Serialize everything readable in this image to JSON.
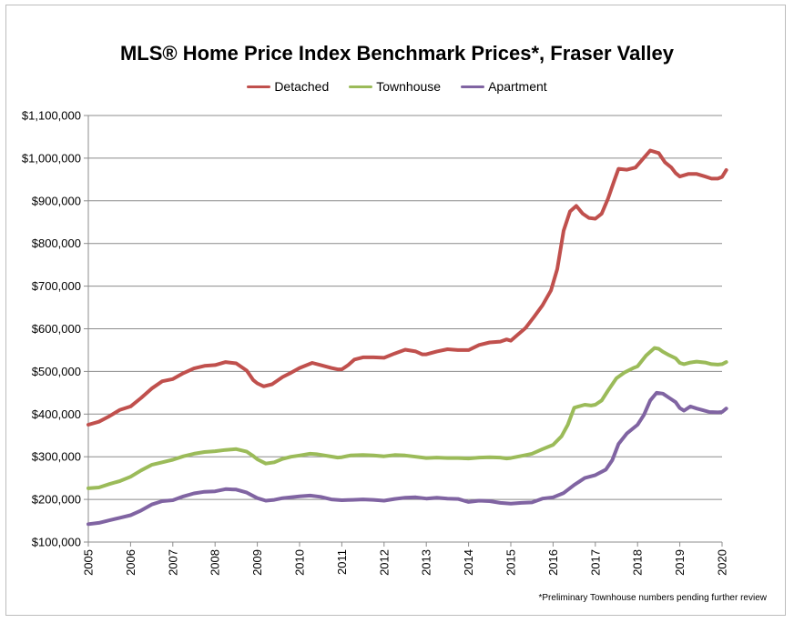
{
  "chart_data": {
    "type": "line",
    "title": "MLS® Home Price Index Benchmark Prices*, Fraser Valley",
    "footnote": "*Preliminary Townhouse numbers pending further review",
    "xlabel": "",
    "ylabel": "",
    "x_range": [
      2005,
      2020
    ],
    "ylim": [
      100000,
      1100000
    ],
    "grid": true,
    "legend_placement": "top-center",
    "y_ticks": [
      100000,
      200000,
      300000,
      400000,
      500000,
      600000,
      700000,
      800000,
      900000,
      1000000,
      1100000
    ],
    "y_tick_labels": [
      "$100,000",
      "$200,000",
      "$300,000",
      "$400,000",
      "$500,000",
      "$600,000",
      "$700,000",
      "$800,000",
      "$900,000",
      "$1,000,000",
      "$1,100,000"
    ],
    "x_ticks": [
      2005,
      2006,
      2007,
      2008,
      2009,
      2010,
      2011,
      2012,
      2013,
      2014,
      2015,
      2016,
      2017,
      2018,
      2019,
      2020
    ],
    "x_tick_labels": [
      "2005",
      "2006",
      "2007",
      "2008",
      "2009",
      "2010",
      "2011",
      "2012",
      "2013",
      "2014",
      "2015",
      "2016",
      "2017",
      "2018",
      "2019",
      "2020"
    ],
    "series": [
      {
        "name": "Detached",
        "color": "#c0504d",
        "points": [
          [
            2005.0,
            375000
          ],
          [
            2005.25,
            382000
          ],
          [
            2005.5,
            395000
          ],
          [
            2005.75,
            410000
          ],
          [
            2006.0,
            418000
          ],
          [
            2006.25,
            438000
          ],
          [
            2006.5,
            460000
          ],
          [
            2006.75,
            477000
          ],
          [
            2007.0,
            482000
          ],
          [
            2007.25,
            496000
          ],
          [
            2007.5,
            507000
          ],
          [
            2007.75,
            513000
          ],
          [
            2008.0,
            515000
          ],
          [
            2008.25,
            522000
          ],
          [
            2008.5,
            519000
          ],
          [
            2008.75,
            502000
          ],
          [
            2008.9,
            480000
          ],
          [
            2009.0,
            472000
          ],
          [
            2009.15,
            465000
          ],
          [
            2009.35,
            470000
          ],
          [
            2009.6,
            487000
          ],
          [
            2009.8,
            497000
          ],
          [
            2010.0,
            508000
          ],
          [
            2010.3,
            520000
          ],
          [
            2010.5,
            515000
          ],
          [
            2010.75,
            508000
          ],
          [
            2010.9,
            505000
          ],
          [
            2011.0,
            505000
          ],
          [
            2011.15,
            515000
          ],
          [
            2011.3,
            528000
          ],
          [
            2011.5,
            533000
          ],
          [
            2011.75,
            533000
          ],
          [
            2012.0,
            532000
          ],
          [
            2012.25,
            542000
          ],
          [
            2012.5,
            551000
          ],
          [
            2012.75,
            547000
          ],
          [
            2012.9,
            540000
          ],
          [
            2013.0,
            540000
          ],
          [
            2013.25,
            547000
          ],
          [
            2013.5,
            552000
          ],
          [
            2013.75,
            550000
          ],
          [
            2014.0,
            550000
          ],
          [
            2014.25,
            562000
          ],
          [
            2014.5,
            568000
          ],
          [
            2014.75,
            570000
          ],
          [
            2014.9,
            575000
          ],
          [
            2015.0,
            572000
          ],
          [
            2015.15,
            585000
          ],
          [
            2015.35,
            602000
          ],
          [
            2015.55,
            628000
          ],
          [
            2015.75,
            655000
          ],
          [
            2015.95,
            690000
          ],
          [
            2016.1,
            740000
          ],
          [
            2016.25,
            830000
          ],
          [
            2016.4,
            875000
          ],
          [
            2016.55,
            888000
          ],
          [
            2016.7,
            870000
          ],
          [
            2016.85,
            860000
          ],
          [
            2017.0,
            858000
          ],
          [
            2017.15,
            870000
          ],
          [
            2017.3,
            905000
          ],
          [
            2017.45,
            948000
          ],
          [
            2017.55,
            975000
          ],
          [
            2017.75,
            973000
          ],
          [
            2017.95,
            978000
          ],
          [
            2018.1,
            995000
          ],
          [
            2018.3,
            1018000
          ],
          [
            2018.5,
            1012000
          ],
          [
            2018.65,
            990000
          ],
          [
            2018.8,
            978000
          ],
          [
            2018.9,
            965000
          ],
          [
            2019.0,
            957000
          ],
          [
            2019.2,
            963000
          ],
          [
            2019.4,
            963000
          ],
          [
            2019.6,
            957000
          ],
          [
            2019.75,
            952000
          ],
          [
            2019.9,
            952000
          ],
          [
            2020.0,
            956000
          ],
          [
            2020.1,
            972000
          ]
        ]
      },
      {
        "name": "Townhouse",
        "color": "#9bbb59",
        "points": [
          [
            2005.0,
            226000
          ],
          [
            2005.25,
            228000
          ],
          [
            2005.5,
            236000
          ],
          [
            2005.75,
            243000
          ],
          [
            2006.0,
            253000
          ],
          [
            2006.25,
            268000
          ],
          [
            2006.5,
            281000
          ],
          [
            2006.75,
            287000
          ],
          [
            2007.0,
            293000
          ],
          [
            2007.25,
            301000
          ],
          [
            2007.5,
            307000
          ],
          [
            2007.75,
            311000
          ],
          [
            2008.0,
            313000
          ],
          [
            2008.25,
            316000
          ],
          [
            2008.5,
            318000
          ],
          [
            2008.75,
            312000
          ],
          [
            2008.9,
            302000
          ],
          [
            2009.0,
            294000
          ],
          [
            2009.2,
            284000
          ],
          [
            2009.4,
            287000
          ],
          [
            2009.6,
            295000
          ],
          [
            2009.8,
            300000
          ],
          [
            2010.0,
            303000
          ],
          [
            2010.25,
            307000
          ],
          [
            2010.4,
            306000
          ],
          [
            2010.6,
            303000
          ],
          [
            2010.9,
            298000
          ],
          [
            2011.0,
            299000
          ],
          [
            2011.2,
            303000
          ],
          [
            2011.5,
            304000
          ],
          [
            2011.75,
            303000
          ],
          [
            2012.0,
            301000
          ],
          [
            2012.25,
            304000
          ],
          [
            2012.5,
            303000
          ],
          [
            2012.75,
            300000
          ],
          [
            2013.0,
            297000
          ],
          [
            2013.25,
            298000
          ],
          [
            2013.5,
            297000
          ],
          [
            2013.75,
            297000
          ],
          [
            2014.0,
            296000
          ],
          [
            2014.25,
            298000
          ],
          [
            2014.5,
            299000
          ],
          [
            2014.75,
            298000
          ],
          [
            2014.9,
            296000
          ],
          [
            2015.0,
            297000
          ],
          [
            2015.25,
            302000
          ],
          [
            2015.5,
            307000
          ],
          [
            2015.75,
            318000
          ],
          [
            2016.0,
            328000
          ],
          [
            2016.2,
            348000
          ],
          [
            2016.35,
            375000
          ],
          [
            2016.5,
            415000
          ],
          [
            2016.75,
            422000
          ],
          [
            2016.9,
            420000
          ],
          [
            2017.0,
            422000
          ],
          [
            2017.15,
            432000
          ],
          [
            2017.3,
            455000
          ],
          [
            2017.5,
            484000
          ],
          [
            2017.7,
            498000
          ],
          [
            2017.9,
            508000
          ],
          [
            2018.0,
            512000
          ],
          [
            2018.2,
            537000
          ],
          [
            2018.4,
            555000
          ],
          [
            2018.5,
            553000
          ],
          [
            2018.6,
            546000
          ],
          [
            2018.75,
            538000
          ],
          [
            2018.9,
            531000
          ],
          [
            2019.0,
            520000
          ],
          [
            2019.1,
            517000
          ],
          [
            2019.25,
            521000
          ],
          [
            2019.4,
            523000
          ],
          [
            2019.6,
            521000
          ],
          [
            2019.75,
            517000
          ],
          [
            2019.9,
            516000
          ],
          [
            2020.0,
            517000
          ],
          [
            2020.1,
            522000
          ]
        ]
      },
      {
        "name": "Apartment",
        "color": "#8064a2",
        "points": [
          [
            2005.0,
            142000
          ],
          [
            2005.25,
            145000
          ],
          [
            2005.5,
            151000
          ],
          [
            2005.75,
            157000
          ],
          [
            2006.0,
            163000
          ],
          [
            2006.25,
            174000
          ],
          [
            2006.5,
            188000
          ],
          [
            2006.75,
            196000
          ],
          [
            2007.0,
            198000
          ],
          [
            2007.25,
            207000
          ],
          [
            2007.5,
            214000
          ],
          [
            2007.75,
            218000
          ],
          [
            2008.0,
            219000
          ],
          [
            2008.25,
            224000
          ],
          [
            2008.5,
            223000
          ],
          [
            2008.75,
            216000
          ],
          [
            2008.9,
            208000
          ],
          [
            2009.0,
            203000
          ],
          [
            2009.2,
            197000
          ],
          [
            2009.4,
            199000
          ],
          [
            2009.6,
            203000
          ],
          [
            2009.8,
            205000
          ],
          [
            2010.0,
            207000
          ],
          [
            2010.25,
            209000
          ],
          [
            2010.5,
            206000
          ],
          [
            2010.75,
            200000
          ],
          [
            2011.0,
            198000
          ],
          [
            2011.25,
            199000
          ],
          [
            2011.5,
            200000
          ],
          [
            2011.75,
            199000
          ],
          [
            2012.0,
            197000
          ],
          [
            2012.25,
            201000
          ],
          [
            2012.5,
            204000
          ],
          [
            2012.75,
            205000
          ],
          [
            2013.0,
            202000
          ],
          [
            2013.25,
            204000
          ],
          [
            2013.5,
            202000
          ],
          [
            2013.75,
            201000
          ],
          [
            2014.0,
            194000
          ],
          [
            2014.25,
            197000
          ],
          [
            2014.5,
            196000
          ],
          [
            2014.75,
            192000
          ],
          [
            2015.0,
            190000
          ],
          [
            2015.25,
            192000
          ],
          [
            2015.5,
            193000
          ],
          [
            2015.75,
            202000
          ],
          [
            2016.0,
            205000
          ],
          [
            2016.25,
            215000
          ],
          [
            2016.5,
            234000
          ],
          [
            2016.75,
            250000
          ],
          [
            2017.0,
            257000
          ],
          [
            2017.25,
            270000
          ],
          [
            2017.4,
            292000
          ],
          [
            2017.55,
            330000
          ],
          [
            2017.75,
            355000
          ],
          [
            2018.0,
            375000
          ],
          [
            2018.15,
            398000
          ],
          [
            2018.3,
            432000
          ],
          [
            2018.45,
            450000
          ],
          [
            2018.6,
            448000
          ],
          [
            2018.75,
            438000
          ],
          [
            2018.9,
            428000
          ],
          [
            2019.0,
            414000
          ],
          [
            2019.1,
            408000
          ],
          [
            2019.25,
            418000
          ],
          [
            2019.4,
            413000
          ],
          [
            2019.55,
            409000
          ],
          [
            2019.7,
            405000
          ],
          [
            2019.9,
            404000
          ],
          [
            2020.0,
            405000
          ],
          [
            2020.1,
            413000
          ]
        ]
      }
    ]
  }
}
